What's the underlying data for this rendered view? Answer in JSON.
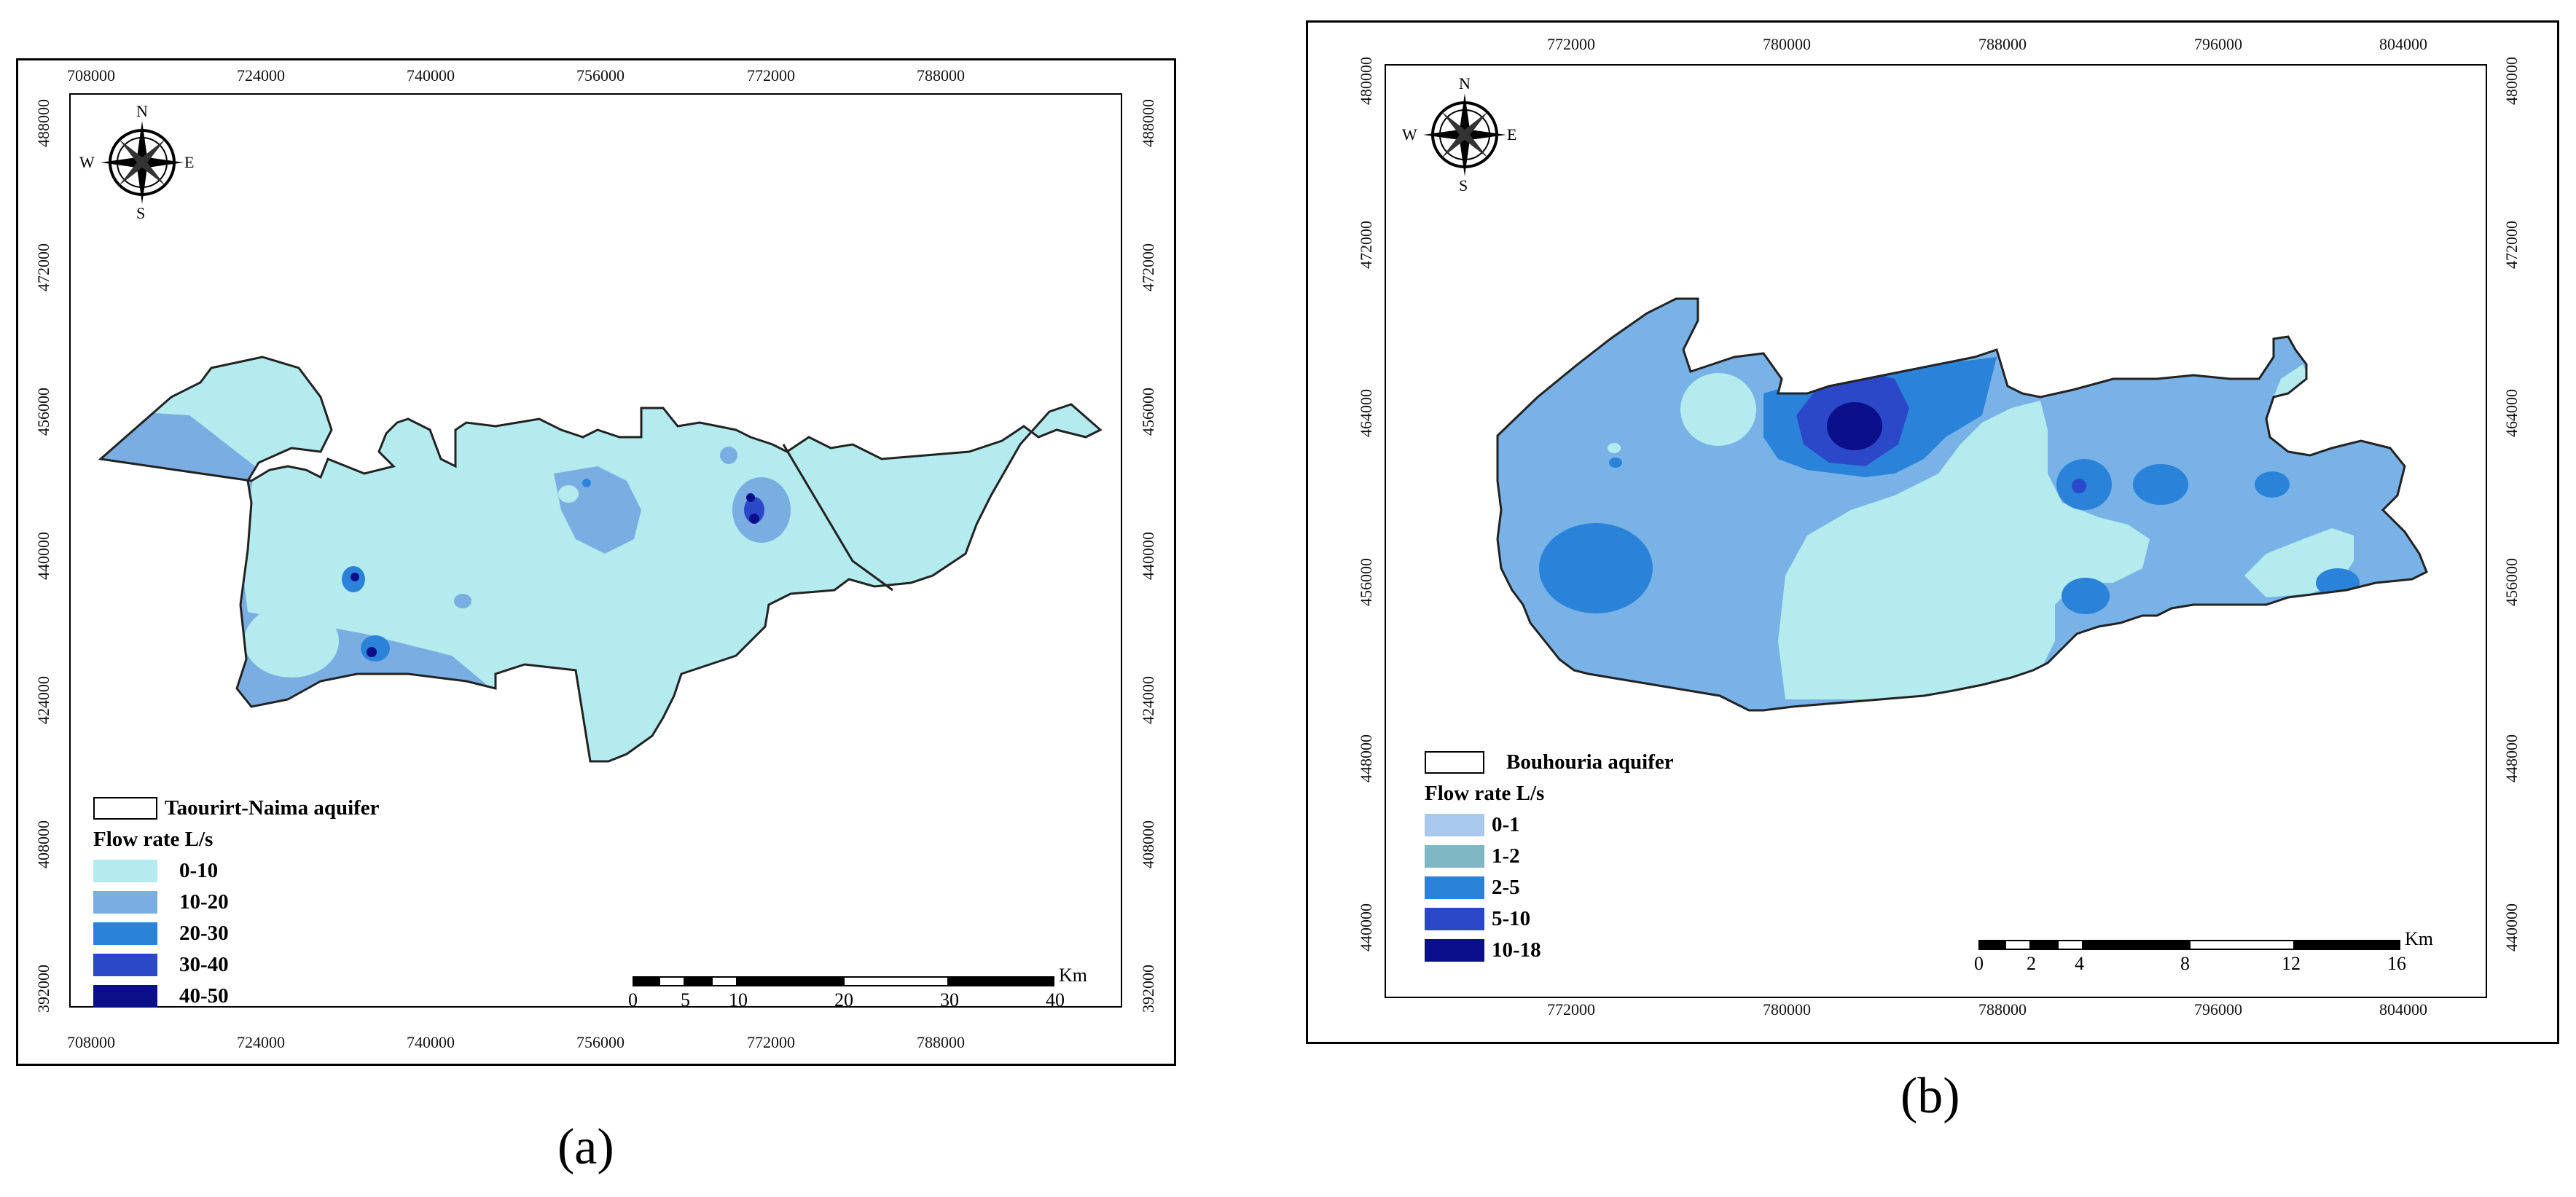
{
  "panels": [
    {
      "id": "a",
      "panel_label": "(a)",
      "x_ticks": [
        "708000",
        "724000",
        "740000",
        "756000",
        "772000",
        "788000"
      ],
      "y_ticks": [
        "488000",
        "472000",
        "456000",
        "440000",
        "424000",
        "408000",
        "392000"
      ],
      "compass": {
        "n": "N",
        "s": "S",
        "e": "E",
        "w": "W"
      },
      "legend": {
        "aquifer": "Taourirt-Naima aquifer",
        "title": "Flow rate L/s",
        "classes": [
          {
            "label": "0-10",
            "color": "#b3ebee"
          },
          {
            "label": "10-20",
            "color": "#7aaee2"
          },
          {
            "label": "20-30",
            "color": "#2a83d9"
          },
          {
            "label": "30-40",
            "color": "#2b48c8"
          },
          {
            "label": "40-50",
            "color": "#0b0f8a"
          }
        ]
      },
      "scale": {
        "unit": "Km",
        "labels": [
          "0",
          "5",
          "10",
          "20",
          "30",
          "40"
        ]
      }
    },
    {
      "id": "b",
      "panel_label": "(b)",
      "x_ticks": [
        "772000",
        "780000",
        "788000",
        "796000",
        "804000"
      ],
      "y_ticks": [
        "480000",
        "472000",
        "464000",
        "456000",
        "448000",
        "440000"
      ],
      "compass": {
        "n": "N",
        "s": "S",
        "e": "E",
        "w": "W"
      },
      "legend": {
        "aquifer": "Bouhouria aquifer",
        "title": "Flow rate L/s",
        "classes": [
          {
            "label": "0-1",
            "color": "#a9c8ee"
          },
          {
            "label": "1-2",
            "color": "#7fb8c4"
          },
          {
            "label": "2-5",
            "color": "#2a83d9"
          },
          {
            "label": "5-10",
            "color": "#2b48c8"
          },
          {
            "label": "10-18",
            "color": "#0b0f8a"
          }
        ]
      },
      "scale": {
        "unit": "Km",
        "labels": [
          "0",
          "2",
          "4",
          "8",
          "12",
          "16"
        ]
      }
    }
  ]
}
